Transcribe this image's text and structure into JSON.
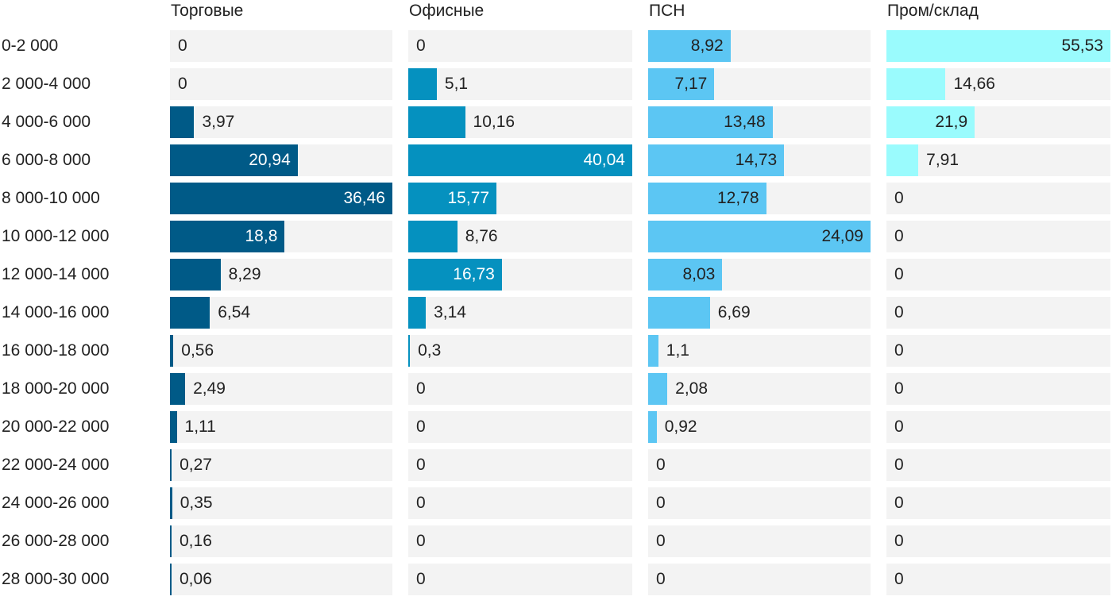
{
  "chart_data": {
    "type": "bar",
    "orientation": "horizontal",
    "layout": "small-multiples",
    "categories": [
      "0-2 000",
      "2 000-4 000",
      "4 000-6 000",
      "6 000-8 000",
      "8 000-10 000",
      "10 000-12 000",
      "12 000-14 000",
      "14 000-16 000",
      "16 000-18 000",
      "18 000-20 000",
      "20 000-22 000",
      "22 000-24 000",
      "24 000-26 000",
      "26 000-28 000",
      "28 000-30 000"
    ],
    "series": [
      {
        "name": "Торговые",
        "color": "#005a87",
        "values": [
          0,
          0,
          3.97,
          20.94,
          36.46,
          18.8,
          8.29,
          6.54,
          0.56,
          2.49,
          1.11,
          0.27,
          0.35,
          0.16,
          0.06
        ],
        "labels": [
          "0",
          "0",
          "3,97",
          "20,94",
          "36,46",
          "18,8",
          "8,29",
          "6,54",
          "0,56",
          "2,49",
          "1,11",
          "0,27",
          "0,35",
          "0,16",
          "0,06"
        ]
      },
      {
        "name": "Офисные",
        "color": "#0591bf",
        "values": [
          0,
          5.1,
          10.16,
          40.04,
          15.77,
          8.76,
          16.73,
          3.14,
          0.3,
          0,
          0,
          0,
          0,
          0,
          0
        ],
        "labels": [
          "0",
          "5,1",
          "10,16",
          "40,04",
          "15,77",
          "8,76",
          "16,73",
          "3,14",
          "0,3",
          "0",
          "0",
          "0",
          "0",
          "0",
          "0"
        ]
      },
      {
        "name": "ПСН",
        "color": "#5cc6f3",
        "values": [
          8.92,
          7.17,
          13.48,
          14.73,
          12.78,
          24.09,
          8.03,
          6.69,
          1.1,
          2.08,
          0.92,
          0,
          0,
          0,
          0
        ],
        "labels": [
          "8,92",
          "7,17",
          "13,48",
          "14,73",
          "12,78",
          "24,09",
          "8,03",
          "6,69",
          "1,1",
          "2,08",
          "0,92",
          "0",
          "0",
          "0",
          "0"
        ]
      },
      {
        "name": "Пром/склад",
        "color": "#9afbfd",
        "values": [
          55.53,
          14.66,
          21.9,
          7.91,
          0,
          0,
          0,
          0,
          0,
          0,
          0,
          0,
          0,
          0,
          0
        ],
        "labels": [
          "55,53",
          "14,66",
          "21,9",
          "7,91",
          "0",
          "0",
          "0",
          "0",
          "0",
          "0",
          "0",
          "0",
          "0",
          "0",
          "0"
        ]
      }
    ],
    "grid": false,
    "legend": "none"
  }
}
